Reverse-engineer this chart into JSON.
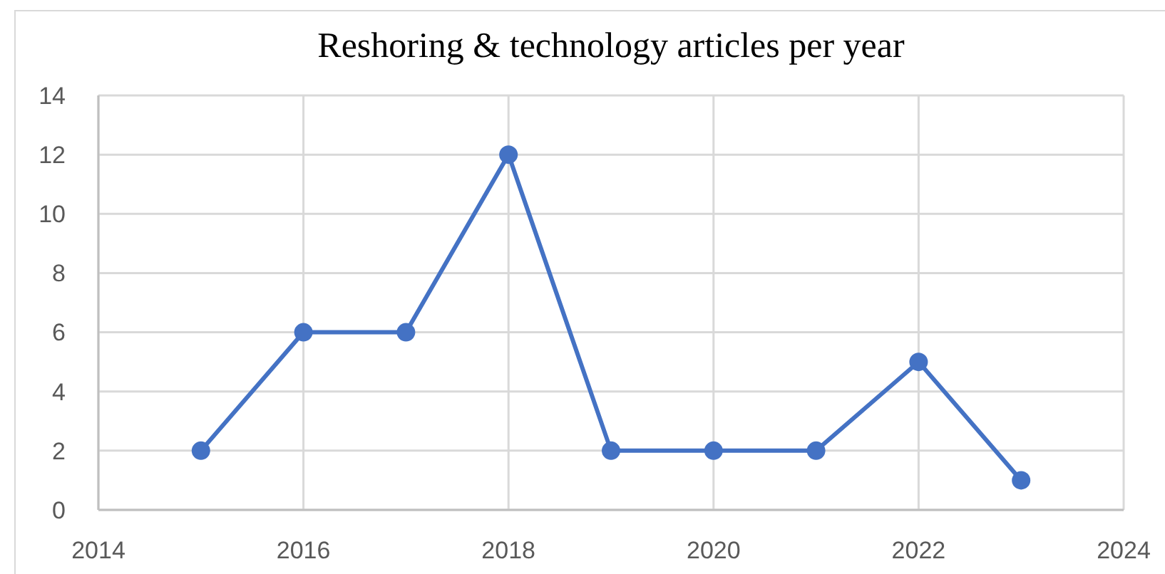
{
  "chart_data": {
    "type": "line",
    "title": "Reshoring & technology articles per year",
    "x": [
      2015,
      2016,
      2017,
      2018,
      2019,
      2020,
      2021,
      2022,
      2023
    ],
    "series": [
      {
        "color": "#4472c4",
        "values": [
          2,
          6,
          6,
          12,
          2,
          2,
          2,
          5,
          1
        ]
      }
    ],
    "xlim": [
      2014,
      2024
    ],
    "xticks": [
      2014,
      2016,
      2018,
      2020,
      2022,
      2024
    ],
    "ylim": [
      0,
      14
    ],
    "yticks": [
      0,
      2,
      4,
      6,
      8,
      10,
      12,
      14
    ],
    "grid": true,
    "marker": "circle",
    "line_style": "solid"
  }
}
